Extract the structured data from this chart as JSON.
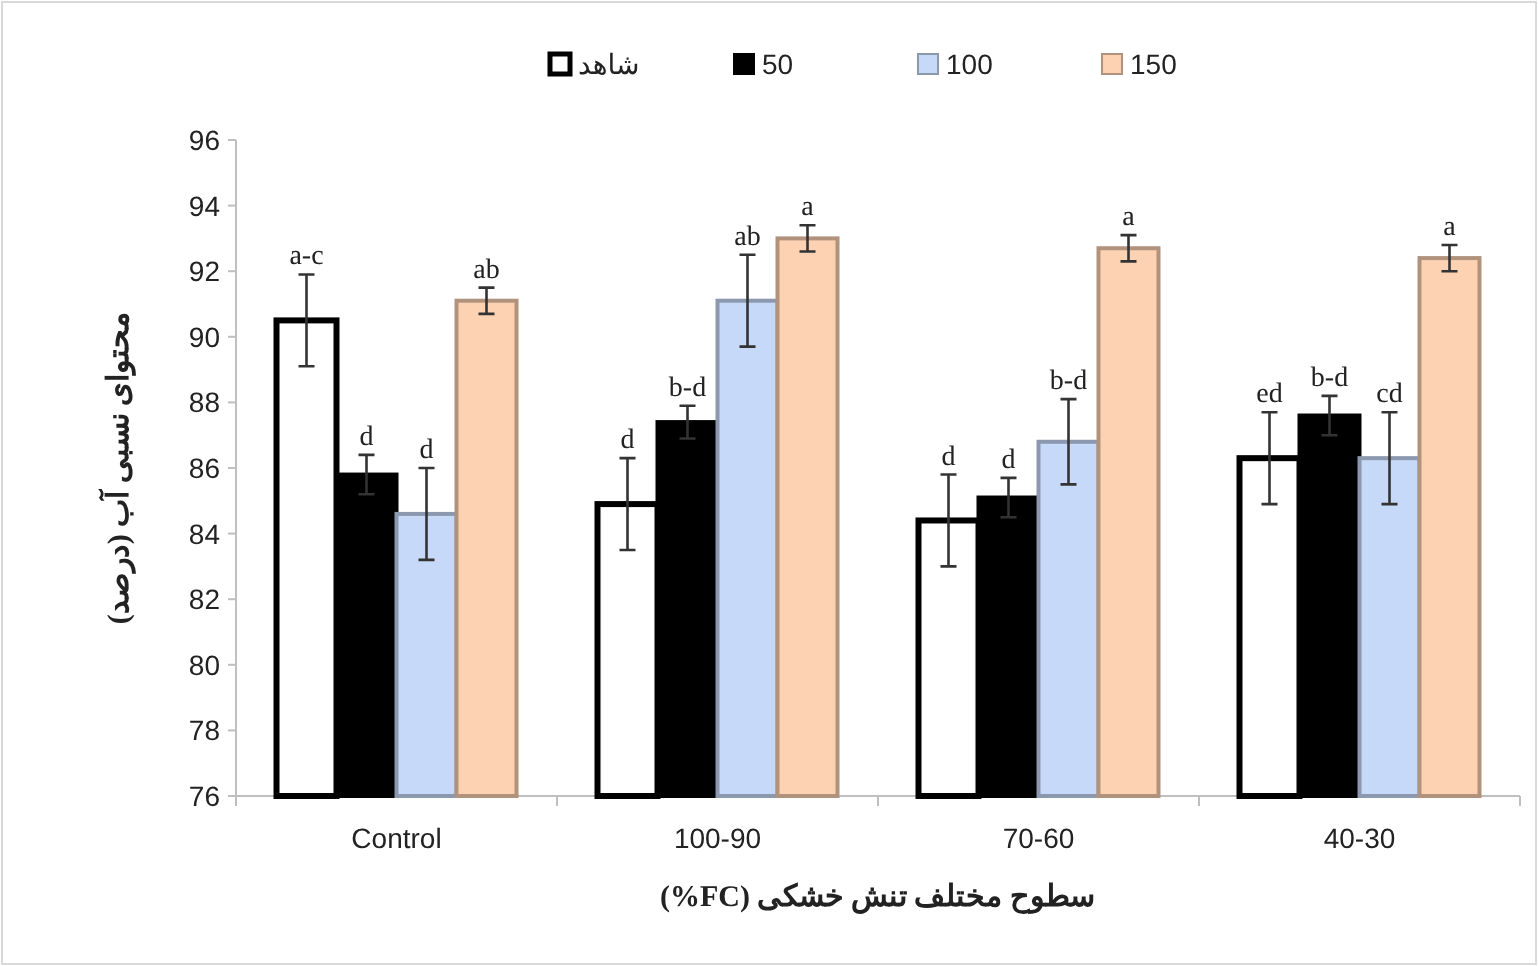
{
  "chart_data": {
    "type": "bar",
    "xlabel": "سطوح مختلف تنش خشکی (FC%)",
    "ylabel": "محتوای نسبی آب (درصد)",
    "categories": [
      "Control",
      "100-90",
      "70-60",
      "40-30"
    ],
    "ylim": [
      76,
      96
    ],
    "yticks": [
      76,
      78,
      80,
      82,
      84,
      86,
      88,
      90,
      92,
      94,
      96
    ],
    "legend": "top",
    "grid": false,
    "series": [
      {
        "name": "شاهد",
        "color": "#ffffff",
        "values": [
          90.5,
          84.9,
          84.4,
          86.3
        ],
        "errors": [
          1.4,
          1.4,
          1.4,
          1.4
        ],
        "value_labels": [
          "a-c",
          "d",
          "d",
          "ed"
        ]
      },
      {
        "name": "50",
        "color": "#000000",
        "values": [
          85.8,
          87.4,
          85.1,
          87.6
        ],
        "errors": [
          0.6,
          0.5,
          0.6,
          0.6
        ],
        "value_labels": [
          "d",
          "b-d",
          "d",
          "b-d"
        ]
      },
      {
        "name": "100",
        "color": "#c6d9f8",
        "values": [
          84.6,
          91.1,
          86.8,
          86.3
        ],
        "errors": [
          1.4,
          1.4,
          1.3,
          1.4
        ],
        "value_labels": [
          "d",
          "ab",
          "b-d",
          "cd"
        ]
      },
      {
        "name": "150",
        "color": "#fdd2b2",
        "values": [
          91.1,
          93.0,
          92.7,
          92.4
        ],
        "errors": [
          0.4,
          0.4,
          0.4,
          0.4
        ],
        "value_labels": [
          "ab",
          "a",
          "a",
          "a"
        ]
      }
    ]
  }
}
